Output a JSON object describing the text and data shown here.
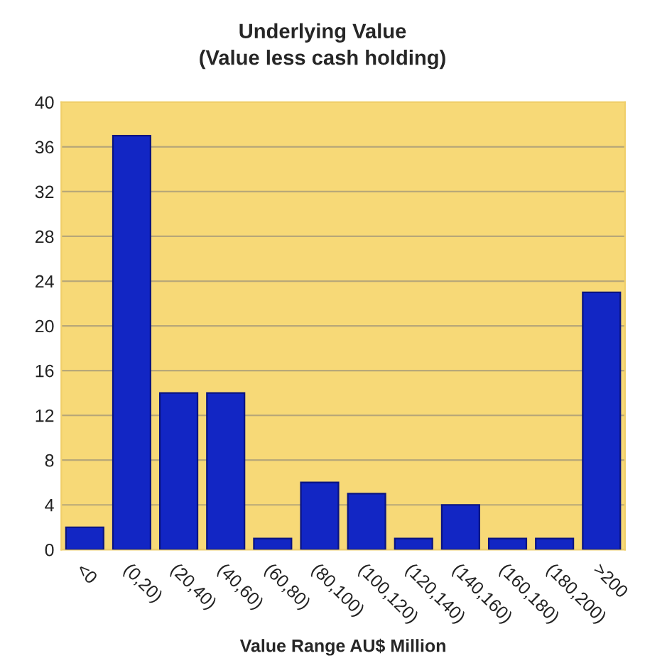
{
  "chart_data": {
    "type": "bar",
    "title": "Underlying Value",
    "subtitle": "(Value less cash holding)",
    "xlabel": "Value Range AU$ Million",
    "categories": [
      "<0",
      "(0,20)",
      "(20,40)",
      "(40,60)",
      "(60,80)",
      "(80,100)",
      "(100,120)",
      "(120,140)",
      "(140,160)",
      "(160,180)",
      "(180,200)",
      ">200"
    ],
    "values": [
      2,
      37,
      14,
      14,
      1,
      6,
      5,
      1,
      4,
      1,
      1,
      23
    ],
    "color": "#1226c4",
    "ylim": [
      0,
      40
    ],
    "yticks": [
      0,
      4,
      8,
      12,
      16,
      20,
      24,
      28,
      32,
      36,
      40
    ],
    "grid": "y"
  }
}
